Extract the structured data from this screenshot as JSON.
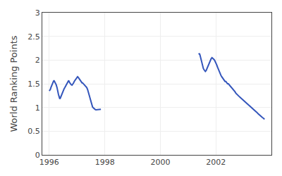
{
  "chart_data": {
    "type": "line",
    "y_label": "World Ranking Points",
    "series": [
      {
        "color": "#3355bb",
        "x": [
          1996.0,
          1996.04,
          1996.06,
          1996.09,
          1996.12,
          1996.15,
          1996.17,
          1996.19,
          1996.22,
          1996.25,
          1996.28,
          1996.3,
          1996.33,
          1996.36,
          1996.38,
          1996.4,
          1996.42,
          1996.44,
          1996.46,
          1996.48,
          1996.5,
          1996.52,
          1996.54,
          1996.56,
          1996.58,
          1996.6,
          1996.62,
          1996.64,
          1996.67,
          1996.7,
          1996.73,
          1996.76,
          1996.79,
          1996.82,
          1996.85,
          1996.88,
          1996.9,
          1996.92,
          1996.94,
          1996.96,
          1996.98,
          1997.0,
          1997.02,
          1997.04,
          1997.06,
          1997.08,
          1997.1,
          1997.12,
          1997.14,
          1997.16,
          1997.18,
          1997.2,
          1997.23,
          1997.26,
          1997.29,
          1997.32,
          1997.35,
          1997.38,
          1997.41,
          1997.44,
          1997.47,
          1997.5,
          1997.53,
          1997.56,
          1997.59,
          1997.62,
          1997.65,
          1997.68,
          1997.71,
          1997.74,
          1997.77,
          1997.8,
          1997.82,
          1997.84,
          1997.86
        ],
        "values": [
          1.35,
          1.38,
          1.42,
          1.47,
          1.5,
          1.55,
          1.57,
          1.55,
          1.52,
          1.48,
          1.42,
          1.35,
          1.28,
          1.22,
          1.18,
          1.2,
          1.23,
          1.27,
          1.3,
          1.32,
          1.35,
          1.37,
          1.4,
          1.42,
          1.44,
          1.47,
          1.5,
          1.52,
          1.55,
          1.57,
          1.53,
          1.5,
          1.48,
          1.47,
          1.49,
          1.52,
          1.55,
          1.57,
          1.58,
          1.6,
          1.62,
          1.63,
          1.65,
          1.64,
          1.62,
          1.6,
          1.58,
          1.56,
          1.54,
          1.53,
          1.52,
          1.52,
          1.5,
          1.48,
          1.46,
          1.44,
          1.42,
          1.38,
          1.32,
          1.25,
          1.18,
          1.1,
          1.05,
          1.01,
          0.99,
          0.97,
          0.96,
          0.95,
          0.95,
          0.95,
          0.96,
          0.96,
          0.96,
          0.96,
          0.96
        ]
      },
      {
        "color": "#3355bb",
        "x": [
          2001.38,
          2001.41,
          2001.43,
          2001.45,
          2001.47,
          2001.49,
          2001.51,
          2001.53,
          2001.55,
          2001.57,
          2001.59,
          2001.62,
          2001.65,
          2001.68,
          2001.71,
          2001.74,
          2001.77,
          2001.8,
          2001.83,
          2001.86,
          2001.89,
          2001.92,
          2001.95,
          2001.98,
          2002.0,
          2002.03,
          2002.06,
          2002.09,
          2002.12,
          2002.15,
          2002.18,
          2002.21,
          2002.24,
          2002.27,
          2002.3,
          2002.33,
          2002.36,
          2002.39,
          2002.42,
          2002.45,
          2002.48,
          2002.51,
          2002.54,
          2002.57,
          2002.6,
          2002.63,
          2002.66,
          2002.69,
          2002.72,
          2002.75,
          2002.78,
          2002.82,
          2002.86,
          2002.9,
          2002.94,
          2002.97,
          2003.0,
          2003.03,
          2003.07,
          2003.11,
          2003.15,
          2003.19,
          2003.23,
          2003.27,
          2003.31,
          2003.35,
          2003.39,
          2003.43,
          2003.47,
          2003.52,
          2003.57,
          2003.62,
          2003.67,
          2003.72,
          2003.75
        ],
        "values": [
          2.12,
          2.14,
          2.1,
          2.05,
          2.0,
          1.95,
          1.9,
          1.85,
          1.82,
          1.8,
          1.78,
          1.76,
          1.78,
          1.82,
          1.87,
          1.92,
          1.96,
          2.0,
          2.03,
          2.05,
          2.04,
          2.02,
          2.0,
          1.97,
          1.95,
          1.9,
          1.85,
          1.8,
          1.75,
          1.72,
          1.68,
          1.65,
          1.62,
          1.6,
          1.57,
          1.55,
          1.55,
          1.53,
          1.5,
          1.5,
          1.48,
          1.45,
          1.43,
          1.42,
          1.4,
          1.38,
          1.35,
          1.33,
          1.3,
          1.28,
          1.26,
          1.24,
          1.22,
          1.2,
          1.18,
          1.16,
          1.14,
          1.12,
          1.1,
          1.08,
          1.06,
          1.05,
          1.03,
          1.01,
          0.99,
          0.97,
          0.95,
          0.92,
          0.9,
          0.87,
          0.84,
          0.82,
          0.79,
          0.77,
          0.75
        ]
      }
    ],
    "xlim": [
      1995.75,
      2004.0
    ],
    "xticks": [
      1996,
      1998,
      2000,
      2002
    ],
    "ylim": [
      0,
      3
    ],
    "yticks": [
      0,
      0.5,
      1,
      1.5,
      2,
      2.5,
      3
    ],
    "grid": true
  }
}
